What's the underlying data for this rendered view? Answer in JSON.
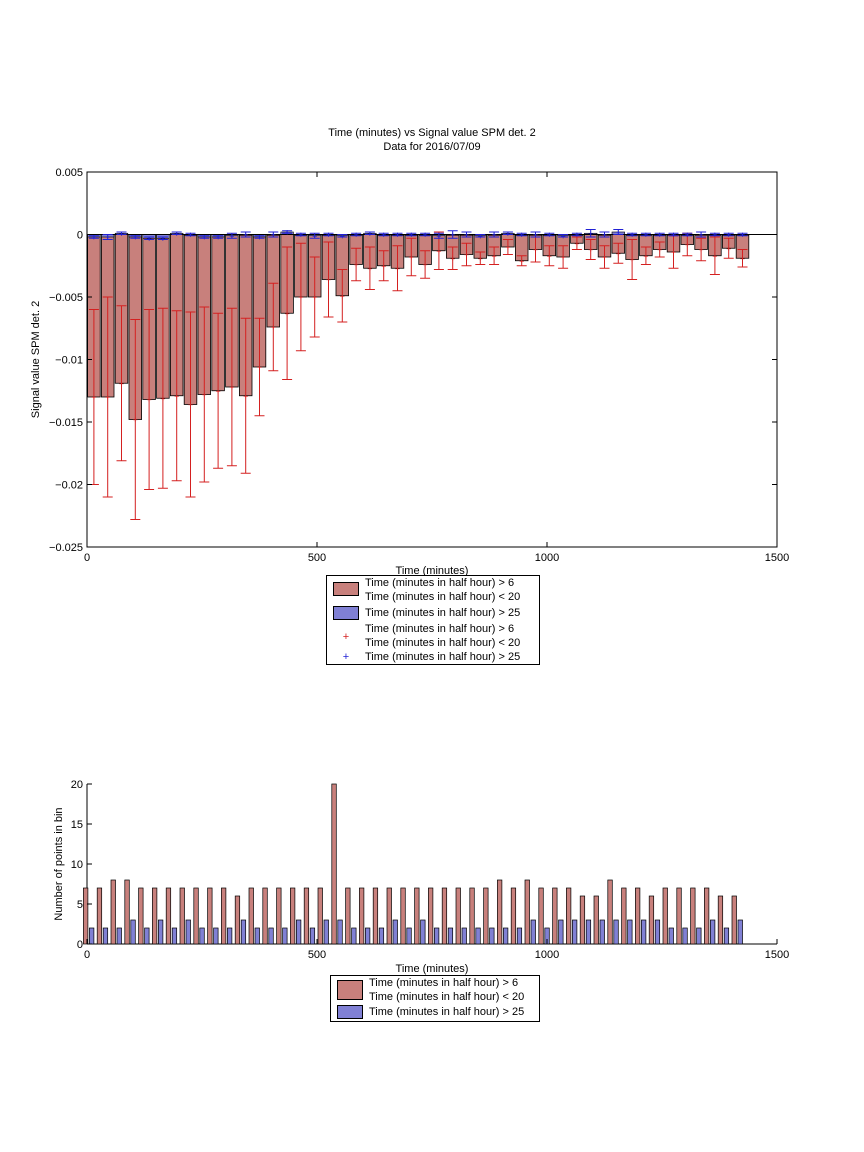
{
  "figure": {
    "title_line1": "Time (minutes) vs Signal value SPM det. 2",
    "title_line2": "Data for 2016/07/09"
  },
  "colors": {
    "red_fill": "#c8807c",
    "blue_fill": "#8080d4",
    "red_line": "#d42020",
    "blue_line": "#2020d4"
  },
  "chart_data": [
    {
      "type": "bar",
      "title": "Time (minutes) vs Signal value SPM det. 2\nData for 2016/07/09",
      "xlabel": "Time (minutes)",
      "ylabel": "Signal value SPM det. 2",
      "xlim": [
        0,
        1500
      ],
      "ylim": [
        -0.025,
        0.005
      ],
      "xticks": [
        0,
        500,
        1000,
        1500
      ],
      "yticks": [
        0.005,
        0,
        -0.005,
        -0.01,
        -0.015,
        -0.02,
        -0.025
      ],
      "ytick_labels": [
        "0.005",
        "0",
        "−0.005",
        "−0.01",
        "−0.015",
        "−0.02",
        "−0.025"
      ],
      "x": [
        15,
        45,
        75,
        105,
        135,
        165,
        195,
        225,
        255,
        285,
        315,
        345,
        375,
        405,
        435,
        465,
        495,
        525,
        555,
        585,
        615,
        645,
        675,
        705,
        735,
        765,
        795,
        825,
        855,
        885,
        915,
        945,
        975,
        1005,
        1035,
        1065,
        1095,
        1125,
        1155,
        1185,
        1215,
        1245,
        1275,
        1305,
        1335,
        1365,
        1395,
        1425
      ],
      "series": [
        {
          "name": "Time (minutes in half hour) > 6\nTime (minutes in half hour) < 20",
          "values": [
            -0.013,
            -0.013,
            -0.0119,
            -0.0148,
            -0.0132,
            -0.0131,
            -0.0129,
            -0.0136,
            -0.0128,
            -0.0125,
            -0.0122,
            -0.0129,
            -0.0106,
            -0.0074,
            -0.0063,
            -0.005,
            -0.005,
            -0.0036,
            -0.0049,
            -0.0024,
            -0.0027,
            -0.0025,
            -0.0027,
            -0.0018,
            -0.0024,
            -0.0013,
            -0.0019,
            -0.0016,
            -0.0019,
            -0.0017,
            -0.001,
            -0.0021,
            -0.0012,
            -0.0017,
            -0.0018,
            -0.0007,
            -0.0012,
            -0.0018,
            -0.0015,
            -0.002,
            -0.0017,
            -0.0012,
            -0.0014,
            -0.0008,
            -0.0012,
            -0.0017,
            -0.0011,
            -0.0019
          ],
          "error": [
            0.007,
            0.008,
            0.0062,
            0.008,
            0.0072,
            0.0072,
            0.0068,
            0.0074,
            0.007,
            0.0062,
            0.0063,
            0.0062,
            0.0039,
            0.0035,
            0.0053,
            0.0043,
            0.0032,
            0.003,
            0.0021,
            0.0013,
            0.0017,
            0.0012,
            0.0018,
            0.0015,
            0.0011,
            0.0015,
            0.0009,
            0.0009,
            0.0005,
            0.0007,
            0.0006,
            0.0004,
            0.001,
            0.0008,
            0.0009,
            0.0005,
            0.0008,
            0.0009,
            0.0008,
            0.0016,
            0.0007,
            0.0006,
            0.0013,
            0.0009,
            0.0009,
            0.0015,
            0.0008,
            0.0007
          ]
        },
        {
          "name": "Time (minutes in half hour) > 25",
          "values": [
            -0.0002,
            -0.0002,
            0.0001,
            -0.0002,
            -0.0003,
            -0.0003,
            0.0001,
            0.0,
            -0.0002,
            -0.0002,
            -0.0001,
            0.0,
            -0.0002,
            0.0,
            0.0002,
            0.0,
            -0.0001,
            0.0,
            -0.0001,
            0.0,
            0.0001,
            0.0,
            0.0,
            0.0,
            0.0,
            -0.0001,
            0.0,
            0.0,
            -0.0001,
            0.0,
            0.0001,
            0.0,
            0.0,
            0.0,
            -0.0001,
            0.0,
            0.0001,
            0.0,
            0.0002,
            0.0,
            0.0,
            0.0,
            0.0,
            0.0,
            0.0,
            0.0,
            0.0,
            0.0
          ],
          "error": [
            0.0001,
            0.0002,
            0.0001,
            0.0001,
            0.0001,
            0.0001,
            0.0001,
            0.0001,
            0.0001,
            0.0001,
            0.0002,
            0.0002,
            0.0001,
            0.0002,
            0.0001,
            0.0001,
            0.0002,
            0.0001,
            0.0001,
            0.0001,
            0.0001,
            0.0001,
            0.0001,
            0.0001,
            0.0001,
            0.0002,
            0.0003,
            0.0002,
            0.0001,
            0.0002,
            0.0001,
            0.0001,
            0.0002,
            0.0001,
            0.0001,
            0.0001,
            0.0003,
            0.0002,
            0.0002,
            0.0001,
            0.0001,
            0.0001,
            0.0001,
            0.0001,
            0.0002,
            0.0001,
            0.0001,
            0.0001
          ]
        }
      ],
      "legend": [
        {
          "kind": "bar",
          "color": "#c8807c",
          "label": "Time (minutes in half hour) > 6",
          "label2": "Time (minutes in half hour) < 20"
        },
        {
          "kind": "bar",
          "color": "#8080d4",
          "label": "Time (minutes in half hour) > 25"
        },
        {
          "kind": "marker",
          "color": "#d42020",
          "label": "Time (minutes in half hour) > 6",
          "label2": "Time (minutes in half hour) < 20"
        },
        {
          "kind": "marker",
          "color": "#2020d4",
          "label": "Time (minutes in half hour) > 25"
        }
      ]
    },
    {
      "type": "bar",
      "title": "",
      "xlabel": "Time (minutes)",
      "ylabel": "Number of points in bin",
      "xlim": [
        0,
        1500
      ],
      "ylim": [
        0,
        20
      ],
      "xticks": [
        0,
        500,
        1000,
        1500
      ],
      "yticks": [
        0,
        5,
        10,
        15,
        20
      ],
      "x": [
        15,
        45,
        75,
        105,
        135,
        165,
        195,
        225,
        255,
        285,
        315,
        345,
        375,
        405,
        435,
        465,
        495,
        525,
        555,
        585,
        615,
        645,
        675,
        705,
        735,
        765,
        795,
        825,
        855,
        885,
        915,
        945,
        975,
        1005,
        1035,
        1065,
        1095,
        1125,
        1155,
        1185,
        1215,
        1245,
        1275,
        1305,
        1335,
        1365,
        1395,
        1425
      ],
      "series": [
        {
          "name": "Time (minutes in half hour) > 6\nTime (minutes in half hour) < 20",
          "values": [
            7,
            7,
            8,
            8,
            7,
            7,
            7,
            7,
            7,
            7,
            7,
            6,
            7,
            7,
            7,
            7,
            7,
            7,
            20,
            7,
            7,
            7,
            7,
            7,
            7,
            7,
            7,
            7,
            7,
            7,
            8,
            7,
            8,
            7,
            7,
            7,
            6,
            6,
            8,
            7,
            7,
            6,
            7,
            7,
            7,
            7,
            6,
            6
          ]
        },
        {
          "name": "Time (minutes in half hour) > 25",
          "values": [
            2,
            2,
            2,
            3,
            2,
            3,
            2,
            3,
            2,
            2,
            2,
            3,
            2,
            2,
            2,
            3,
            2,
            3,
            3,
            2,
            2,
            2,
            3,
            2,
            3,
            2,
            2,
            2,
            2,
            2,
            2,
            2,
            3,
            2,
            3,
            3,
            3,
            3,
            3,
            3,
            3,
            3,
            2,
            2,
            2,
            3,
            2,
            3
          ]
        }
      ],
      "legend": [
        {
          "kind": "bar",
          "color": "#c8807c",
          "label": "Time (minutes in half hour) > 6",
          "label2": "Time (minutes in half hour) < 20"
        },
        {
          "kind": "bar",
          "color": "#8080d4",
          "label": "Time (minutes in half hour) > 25"
        }
      ]
    }
  ]
}
